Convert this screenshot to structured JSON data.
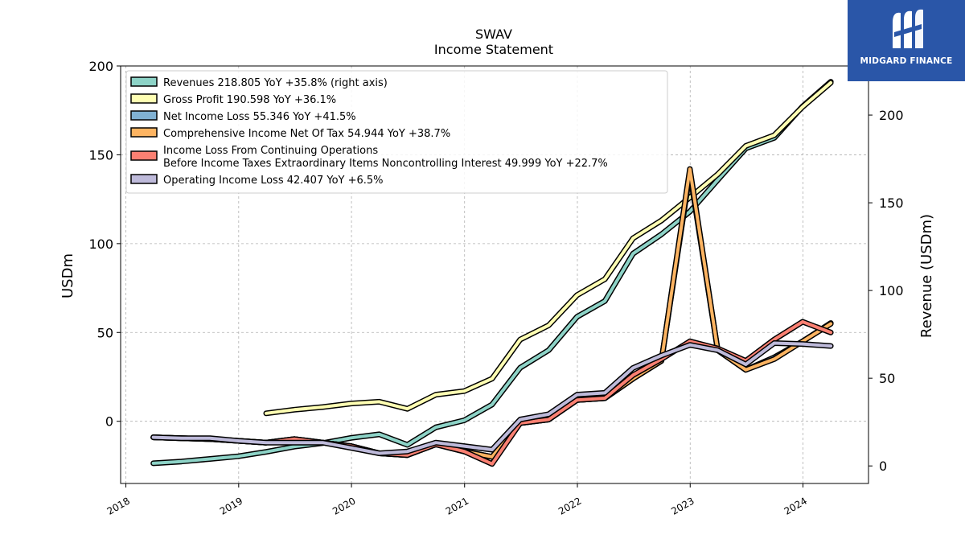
{
  "brand": {
    "name": "MIDGARD FINANCE",
    "bg": "#2a56a8"
  },
  "chart_data": {
    "type": "line",
    "title": "SWAV",
    "subtitle": "Income Statement",
    "ylabel": "USDm",
    "y2label": "Revenue (USDm)",
    "ylim": [
      -35,
      200
    ],
    "y2lim": [
      -10,
      228
    ],
    "xlim": [
      "2017-12-15",
      "2024-07-31"
    ],
    "yticks": [
      0,
      50,
      100,
      150,
      200
    ],
    "y2ticks": [
      0,
      50,
      100,
      150,
      200
    ],
    "xticks": [
      "2018",
      "2019",
      "2020",
      "2021",
      "2022",
      "2023",
      "2024"
    ],
    "grid": true,
    "legend_position": "top-left",
    "series": [
      {
        "name": "Revenues  218.805 YoY +35.8% (right axis)",
        "axis": "right",
        "color": "#8dd3c7",
        "x": [
          "2018-03-31",
          "2018-06-30",
          "2018-09-30",
          "2018-12-31",
          "2019-03-31",
          "2019-06-30",
          "2019-09-30",
          "2019-12-31",
          "2020-03-31",
          "2020-06-30",
          "2020-09-30",
          "2020-12-31",
          "2021-03-31",
          "2021-06-30",
          "2021-09-30",
          "2021-12-31",
          "2022-03-31",
          "2022-06-30",
          "2022-09-30",
          "2022-12-31",
          "2023-03-31",
          "2023-06-30",
          "2023-09-30",
          "2023-12-31",
          "2024-03-31"
        ],
        "values": [
          1.5,
          2.5,
          4,
          5.5,
          8,
          11,
          13,
          16,
          18,
          12,
          22,
          26,
          35,
          56,
          66,
          85,
          94,
          121,
          132,
          145,
          163,
          181,
          187,
          205,
          219
        ]
      },
      {
        "name": "Gross Profit  190.598 YoY +36.1%",
        "axis": "left",
        "color": "#ffffb3",
        "x": [
          "2019-03-31",
          "2019-06-30",
          "2019-09-30",
          "2019-12-31",
          "2020-03-31",
          "2020-06-30",
          "2020-09-30",
          "2020-12-31",
          "2021-03-31",
          "2021-06-30",
          "2021-09-30",
          "2021-12-31",
          "2022-03-31",
          "2022-06-30",
          "2022-09-30",
          "2022-12-31",
          "2023-03-31",
          "2023-06-30",
          "2023-09-30",
          "2023-12-31",
          "2024-03-31"
        ],
        "values": [
          4.5,
          6.5,
          8,
          10,
          11,
          7,
          15,
          17,
          24,
          46,
          54,
          71,
          80,
          103,
          113,
          126,
          139,
          155,
          161,
          177,
          190.6
        ]
      },
      {
        "name": "Net Income Loss  55.346 YoY +41.5%",
        "axis": "left",
        "color": "#80b1d3",
        "x": [
          "2018-03-31",
          "2018-06-30",
          "2018-09-30",
          "2018-12-31",
          "2019-03-31",
          "2019-06-30",
          "2019-09-30",
          "2019-12-31",
          "2020-03-31",
          "2020-06-30",
          "2020-09-30",
          "2020-12-31",
          "2021-03-31",
          "2021-06-30",
          "2021-09-30",
          "2021-12-31",
          "2022-03-31",
          "2022-06-30",
          "2022-09-30",
          "2022-12-31",
          "2023-03-31",
          "2023-06-30",
          "2023-09-30",
          "2023-12-31",
          "2024-03-31"
        ],
        "values": [
          -9,
          -9.5,
          -10,
          -11,
          -12,
          -10,
          -12,
          -14,
          -18,
          -19,
          -13,
          -17,
          -20,
          -1,
          1,
          12,
          13,
          24,
          34,
          140,
          40,
          29,
          36,
          45,
          55.3
        ]
      },
      {
        "name": "Comprehensive Income Net Of Tax  54.944 YoY +38.7%",
        "axis": "left",
        "color": "#fdb462",
        "x": [
          "2018-03-31",
          "2018-06-30",
          "2018-09-30",
          "2018-12-31",
          "2019-03-31",
          "2019-06-30",
          "2019-09-30",
          "2019-12-31",
          "2020-03-31",
          "2020-06-30",
          "2020-09-30",
          "2020-12-31",
          "2021-03-31",
          "2021-06-30",
          "2021-09-30",
          "2021-12-31",
          "2022-03-31",
          "2022-06-30",
          "2022-09-30",
          "2022-12-31",
          "2023-03-31",
          "2023-06-30",
          "2023-09-30",
          "2023-12-31",
          "2024-03-31"
        ],
        "values": [
          -9,
          -9.5,
          -10,
          -11,
          -12,
          -10,
          -12,
          -14,
          -18,
          -19,
          -13,
          -17,
          -20,
          -1,
          1,
          12,
          13,
          24,
          34,
          142,
          40,
          29,
          35,
          45,
          54.9
        ]
      },
      {
        "name": "Income Loss From Continuing Operations\nBefore Income Taxes Extraordinary Items Noncontrolling Interest  49.999 YoY +22.7%",
        "axis": "left",
        "color": "#fb8072",
        "x": [
          "2018-03-31",
          "2018-06-30",
          "2018-09-30",
          "2018-12-31",
          "2019-03-31",
          "2019-06-30",
          "2019-09-30",
          "2019-12-31",
          "2020-03-31",
          "2020-06-30",
          "2020-09-30",
          "2020-12-31",
          "2021-03-31",
          "2021-06-30",
          "2021-09-30",
          "2021-12-31",
          "2022-03-31",
          "2022-06-30",
          "2022-09-30",
          "2022-12-31",
          "2023-03-31",
          "2023-06-30",
          "2023-09-30",
          "2023-12-31",
          "2024-03-31"
        ],
        "values": [
          -9,
          -9.5,
          -10,
          -11,
          -12,
          -10,
          -12,
          -14,
          -18,
          -19,
          -13,
          -17,
          -24,
          -1,
          1,
          12,
          13,
          26,
          35,
          45,
          41,
          34,
          46,
          56,
          50
        ]
      },
      {
        "name": "Operating Income Loss  42.407 YoY +6.5%",
        "axis": "left",
        "color": "#bebada",
        "x": [
          "2018-03-31",
          "2018-06-30",
          "2018-09-30",
          "2018-12-31",
          "2019-03-31",
          "2019-06-30",
          "2019-09-30",
          "2019-12-31",
          "2020-03-31",
          "2020-06-30",
          "2020-09-30",
          "2020-12-31",
          "2021-03-31",
          "2021-06-30",
          "2021-09-30",
          "2021-12-31",
          "2022-03-31",
          "2022-06-30",
          "2022-09-30",
          "2022-12-31",
          "2023-03-31",
          "2023-06-30",
          "2023-09-30",
          "2023-12-31",
          "2024-03-31"
        ],
        "values": [
          -9,
          -9.5,
          -9.5,
          -11,
          -12,
          -12,
          -12,
          -15,
          -18,
          -17,
          -12,
          -14,
          -16,
          1,
          4,
          15,
          16,
          30,
          37,
          43,
          40,
          32,
          44,
          43.5,
          42.4
        ]
      }
    ]
  }
}
